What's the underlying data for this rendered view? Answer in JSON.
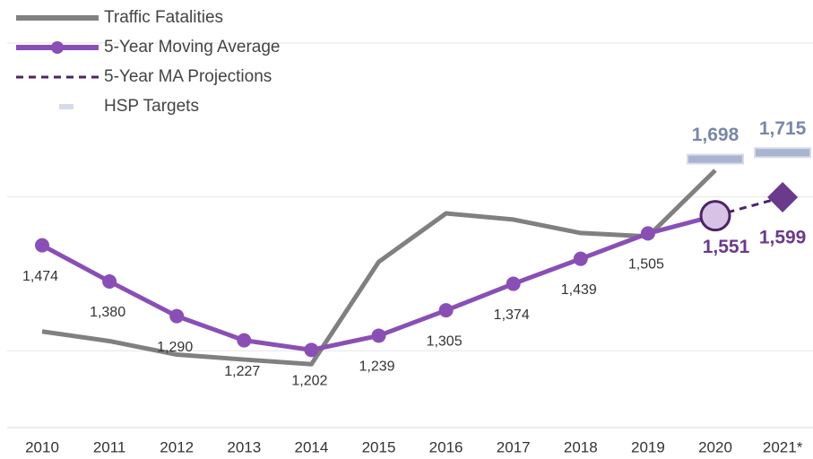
{
  "chart_data": {
    "type": "line",
    "categories": [
      "2010",
      "2011",
      "2012",
      "2013",
      "2014",
      "2015",
      "2016",
      "2017",
      "2018",
      "2019",
      "2020",
      "2021*"
    ],
    "ylim": [
      1000,
      2000
    ],
    "yticks": [
      1200,
      1600,
      2000
    ],
    "grid": true,
    "legend": "top-left",
    "series": [
      {
        "name": "Traffic Fatalities",
        "color": "#808080",
        "style": "solid",
        "values": [
          1250,
          1225,
          1190,
          1177,
          1165,
          1431,
          1557,
          1541,
          1506,
          1497,
          1669,
          null
        ]
      },
      {
        "name": "5-Year Moving Average",
        "color": "#8a4fb5",
        "style": "solid-markers",
        "values": [
          1474,
          1380,
          1290,
          1227,
          1202,
          1239,
          1305,
          1374,
          1439,
          1505,
          1551,
          null
        ],
        "value_labels": [
          "1,474",
          "1,380",
          "1,290",
          "1,227",
          "1,202",
          "1,239",
          "1,305",
          "1,374",
          "1,439",
          "1,505",
          "1,551",
          null
        ]
      },
      {
        "name": "5-Year MA Projections",
        "color": "#4b2467",
        "style": "dashed",
        "values": [
          null,
          null,
          null,
          null,
          null,
          null,
          null,
          null,
          null,
          null,
          1551,
          1599
        ],
        "value_labels": [
          null,
          null,
          null,
          null,
          null,
          null,
          null,
          null,
          null,
          null,
          null,
          "1,599"
        ]
      },
      {
        "name": "HSP Targets",
        "color": "#a8b4d0",
        "style": "target",
        "values": [
          null,
          null,
          null,
          null,
          null,
          null,
          null,
          null,
          null,
          null,
          1698,
          1715
        ],
        "value_labels": [
          null,
          null,
          null,
          null,
          null,
          null,
          null,
          null,
          null,
          null,
          "1,698",
          "1,715"
        ]
      }
    ]
  }
}
